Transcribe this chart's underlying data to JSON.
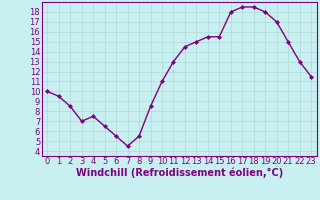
{
  "x": [
    0,
    1,
    2,
    3,
    4,
    5,
    6,
    7,
    8,
    9,
    10,
    11,
    12,
    13,
    14,
    15,
    16,
    17,
    18,
    19,
    20,
    21,
    22,
    23
  ],
  "y": [
    10,
    9.5,
    8.5,
    7,
    7.5,
    6.5,
    5.5,
    4.5,
    5.5,
    8.5,
    11,
    13,
    14.5,
    15,
    15.5,
    15.5,
    18,
    18.5,
    18.5,
    18,
    17,
    15,
    13,
    11.5
  ],
  "line_color": "#800080",
  "marker": "D",
  "marker_size": 2,
  "line_width": 1.0,
  "background_color": "#c8f0f0",
  "grid_color": "#b0d8d8",
  "xlabel": "Windchill (Refroidissement éolien,°C)",
  "xlabel_fontsize": 7,
  "tick_fontsize": 6,
  "xlim": [
    -0.5,
    23.5
  ],
  "ylim": [
    3.5,
    19.0
  ],
  "yticks": [
    4,
    5,
    6,
    7,
    8,
    9,
    10,
    11,
    12,
    13,
    14,
    15,
    16,
    17,
    18
  ],
  "xticks": [
    0,
    1,
    2,
    3,
    4,
    5,
    6,
    7,
    8,
    9,
    10,
    11,
    12,
    13,
    14,
    15,
    16,
    17,
    18,
    19,
    20,
    21,
    22,
    23
  ],
  "spine_color": "#800080"
}
